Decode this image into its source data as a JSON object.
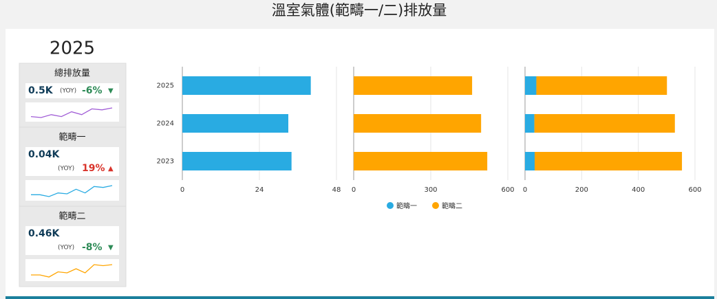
{
  "title": "溫室氣體(範疇一/二)排放量",
  "year": "2025",
  "kpis": [
    {
      "label": "總排放量",
      "value": "0.5K",
      "yoy": "(YOY)",
      "delta": "-6%",
      "arrow": "▼",
      "delta_color": "#2e8b57",
      "sparkline": {
        "color": "#a05cd6",
        "values": [
          3,
          2.5,
          4,
          3,
          5.5,
          4,
          7,
          6.5,
          7.5
        ]
      }
    },
    {
      "label": "範疇一",
      "value": "0.04K",
      "yoy": "(YOY)",
      "delta": "19%",
      "arrow": "▲",
      "delta_color": "#d9342b",
      "sparkline": {
        "color": "#29abe2",
        "values": [
          3,
          3,
          2,
          4,
          3.5,
          6,
          4,
          7.5,
          7,
          8
        ]
      }
    },
    {
      "label": "範疇二",
      "value": "0.46K",
      "yoy": "(YOY)",
      "delta": "-8%",
      "arrow": "▼",
      "delta_color": "#2e8b57",
      "sparkline": {
        "color": "#ffa500",
        "values": [
          3,
          3,
          2,
          4.5,
          4,
          6,
          4,
          8,
          7.5,
          8
        ]
      }
    }
  ],
  "chart_data": [
    {
      "type": "bar",
      "categories": [
        "2025",
        "2024",
        "2023"
      ],
      "xlim": [
        0,
        48
      ],
      "xticks": [
        0,
        24,
        48
      ],
      "grid": true,
      "series": [
        {
          "color": "#29abe2",
          "values": [
            40,
            33,
            34
          ]
        }
      ]
    },
    {
      "type": "bar",
      "xlim": [
        0,
        600
      ],
      "xticks": [
        0,
        300,
        600
      ],
      "grid": true,
      "series": [
        {
          "color": "#ffa500",
          "values": [
            461,
            496,
            520
          ]
        }
      ]
    },
    {
      "type": "bar",
      "stacked": true,
      "xlim": [
        0,
        600
      ],
      "xticks": [
        0,
        200,
        400,
        600
      ],
      "grid": true,
      "series": [
        {
          "name": "範疇一",
          "color": "#29abe2",
          "values": [
            40,
            33,
            34
          ]
        },
        {
          "name": "範疇二",
          "color": "#ffa500",
          "values": [
            461,
            496,
            520
          ]
        }
      ]
    }
  ]
}
